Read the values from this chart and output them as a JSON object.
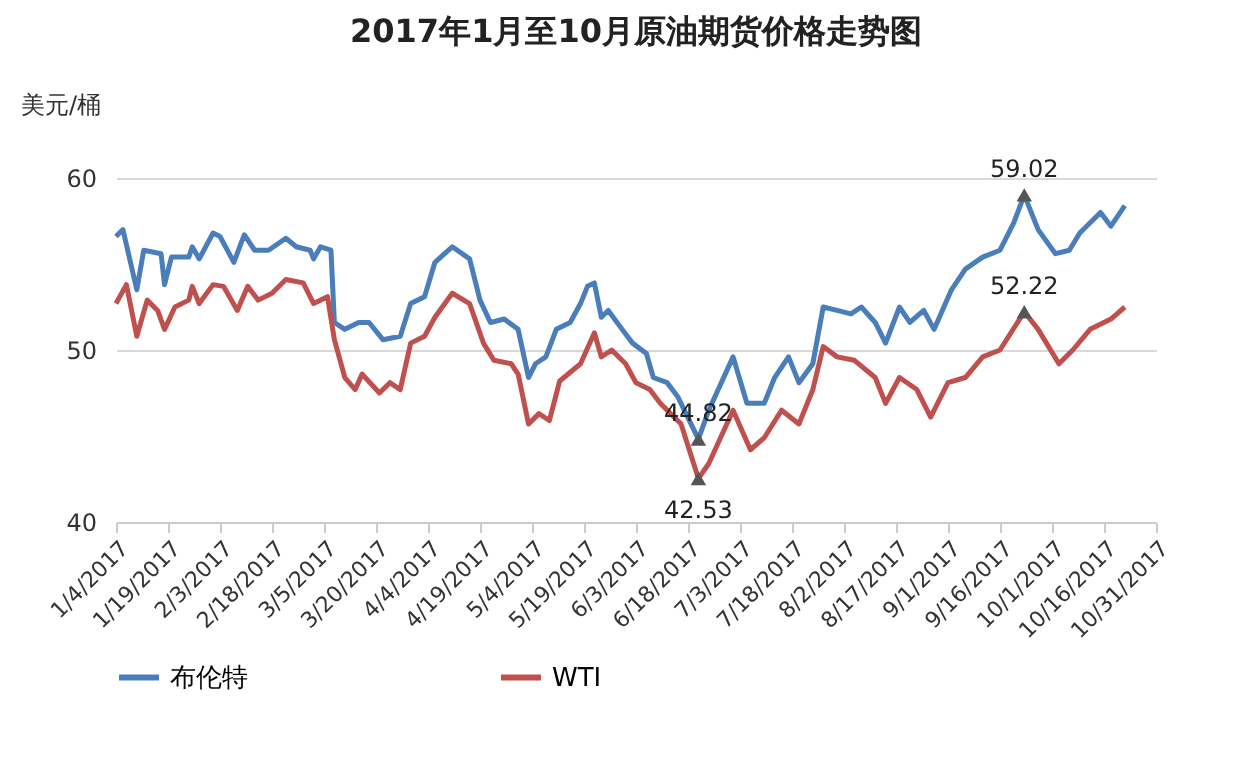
{
  "chart_data": {
    "type": "line",
    "title": "2017年1月至10月原油期货价格走势图",
    "ylabel": "美元/桶",
    "xlim": [
      "2017-01-04",
      "2017-10-31"
    ],
    "xticks": [
      {
        "value": "2017-01-04",
        "label": "1/4/2017"
      },
      {
        "value": "2017-01-19",
        "label": "1/19/2017"
      },
      {
        "value": "2017-02-03",
        "label": "2/3/2017"
      },
      {
        "value": "2017-02-18",
        "label": "2/18/2017"
      },
      {
        "value": "2017-03-05",
        "label": "3/5/2017"
      },
      {
        "value": "2017-03-20",
        "label": "3/20/2017"
      },
      {
        "value": "2017-04-04",
        "label": "4/4/2017"
      },
      {
        "value": "2017-04-19",
        "label": "4/19/2017"
      },
      {
        "value": "2017-05-04",
        "label": "5/4/2017"
      },
      {
        "value": "2017-05-19",
        "label": "5/19/2017"
      },
      {
        "value": "2017-06-03",
        "label": "6/3/2017"
      },
      {
        "value": "2017-06-18",
        "label": "6/18/2017"
      },
      {
        "value": "2017-07-03",
        "label": "7/3/2017"
      },
      {
        "value": "2017-07-18",
        "label": "7/18/2017"
      },
      {
        "value": "2017-08-02",
        "label": "8/2/2017"
      },
      {
        "value": "2017-08-17",
        "label": "8/17/2017"
      },
      {
        "value": "2017-09-01",
        "label": "9/1/2017"
      },
      {
        "value": "2017-09-16",
        "label": "9/16/2017"
      },
      {
        "value": "2017-10-01",
        "label": "10/1/2017"
      },
      {
        "value": "2017-10-16",
        "label": "10/16/2017"
      },
      {
        "value": "2017-10-31",
        "label": "10/31/2017"
      }
    ],
    "ylim": [
      40,
      60
    ],
    "yticks": [
      40,
      50,
      60
    ],
    "grid": "y",
    "legend": "bottom",
    "line_style": "solid",
    "series": [
      {
        "name": "布伦特",
        "color": "#4a7ebb",
        "x": [
          "2017-01-04",
          "2017-01-06",
          "2017-01-10",
          "2017-01-12",
          "2017-01-17",
          "2017-01-18",
          "2017-01-20",
          "2017-01-25",
          "2017-01-26",
          "2017-01-28",
          "2017-02-01",
          "2017-02-03",
          "2017-02-07",
          "2017-02-10",
          "2017-02-13",
          "2017-02-17",
          "2017-02-22",
          "2017-02-25",
          "2017-03-01",
          "2017-03-02",
          "2017-03-04",
          "2017-03-07",
          "2017-03-08",
          "2017-03-11",
          "2017-03-15",
          "2017-03-18",
          "2017-03-22",
          "2017-03-27",
          "2017-03-30",
          "2017-04-03",
          "2017-04-06",
          "2017-04-11",
          "2017-04-16",
          "2017-04-19",
          "2017-04-22",
          "2017-04-26",
          "2017-04-30",
          "2017-05-03",
          "2017-05-05",
          "2017-05-08",
          "2017-05-11",
          "2017-05-15",
          "2017-05-18",
          "2017-05-20",
          "2017-05-22",
          "2017-05-24",
          "2017-05-26",
          "2017-05-30",
          "2017-06-02",
          "2017-06-06",
          "2017-06-08",
          "2017-06-12",
          "2017-06-15",
          "2017-06-21",
          "2017-06-24",
          "2017-07-01",
          "2017-07-05",
          "2017-07-10",
          "2017-07-13",
          "2017-07-17",
          "2017-07-20",
          "2017-07-24",
          "2017-07-27",
          "2017-07-31",
          "2017-08-04",
          "2017-08-07",
          "2017-08-11",
          "2017-08-14",
          "2017-08-18",
          "2017-08-21",
          "2017-08-25",
          "2017-08-28",
          "2017-09-02",
          "2017-09-06",
          "2017-09-11",
          "2017-09-16",
          "2017-09-20",
          "2017-09-23",
          "2017-09-27",
          "2017-10-02",
          "2017-10-06",
          "2017-10-09",
          "2017-10-15",
          "2017-10-18",
          "2017-10-22"
        ],
        "values": [
          56.6,
          57.0,
          53.5,
          55.8,
          55.6,
          53.8,
          55.4,
          55.4,
          56.0,
          55.3,
          56.8,
          56.6,
          55.1,
          56.7,
          55.8,
          55.8,
          56.5,
          56.0,
          55.8,
          55.3,
          56.0,
          55.8,
          51.6,
          51.2,
          51.6,
          51.6,
          50.6,
          50.8,
          52.7,
          53.1,
          55.1,
          56.0,
          55.3,
          52.9,
          51.6,
          51.8,
          51.2,
          48.4,
          49.2,
          49.6,
          51.2,
          51.6,
          52.7,
          53.7,
          53.9,
          51.9,
          52.3,
          51.2,
          50.4,
          49.8,
          48.4,
          48.1,
          47.3,
          44.82,
          46.5,
          49.6,
          46.9,
          46.9,
          48.4,
          49.6,
          48.1,
          49.2,
          52.5,
          52.3,
          52.1,
          52.5,
          51.6,
          50.4,
          52.5,
          51.6,
          52.3,
          51.2,
          53.5,
          54.7,
          55.4,
          55.8,
          57.4,
          59.02,
          57.0,
          55.6,
          55.8,
          56.8,
          58.0,
          57.2,
          58.4
        ]
      },
      {
        "name": "WTI",
        "color": "#c0504d",
        "x": [
          "2017-01-04",
          "2017-01-07",
          "2017-01-10",
          "2017-01-13",
          "2017-01-16",
          "2017-01-18",
          "2017-01-21",
          "2017-01-25",
          "2017-01-26",
          "2017-01-28",
          "2017-02-01",
          "2017-02-04",
          "2017-02-08",
          "2017-02-11",
          "2017-02-14",
          "2017-02-18",
          "2017-02-22",
          "2017-02-27",
          "2017-03-02",
          "2017-03-06",
          "2017-03-08",
          "2017-03-11",
          "2017-03-14",
          "2017-03-16",
          "2017-03-21",
          "2017-03-24",
          "2017-03-27",
          "2017-03-30",
          "2017-04-03",
          "2017-04-06",
          "2017-04-11",
          "2017-04-16",
          "2017-04-20",
          "2017-04-23",
          "2017-04-28",
          "2017-04-30",
          "2017-05-03",
          "2017-05-06",
          "2017-05-09",
          "2017-05-12",
          "2017-05-18",
          "2017-05-22",
          "2017-05-24",
          "2017-05-27",
          "2017-05-31",
          "2017-06-03",
          "2017-06-07",
          "2017-06-10",
          "2017-06-16",
          "2017-06-21",
          "2017-06-24",
          "2017-07-01",
          "2017-07-06",
          "2017-07-10",
          "2017-07-15",
          "2017-07-20",
          "2017-07-24",
          "2017-07-27",
          "2017-07-31",
          "2017-08-05",
          "2017-08-11",
          "2017-08-14",
          "2017-08-18",
          "2017-08-23",
          "2017-08-27",
          "2017-09-01",
          "2017-09-06",
          "2017-09-11",
          "2017-09-16",
          "2017-09-23",
          "2017-09-27",
          "2017-10-03",
          "2017-10-07",
          "2017-10-12",
          "2017-10-18",
          "2017-10-22"
        ],
        "values": [
          52.7,
          53.8,
          50.8,
          52.9,
          52.3,
          51.2,
          52.5,
          52.9,
          53.7,
          52.7,
          53.8,
          53.7,
          52.3,
          53.7,
          52.9,
          53.3,
          54.1,
          53.9,
          52.7,
          53.1,
          50.6,
          48.4,
          47.7,
          48.6,
          47.5,
          48.1,
          47.7,
          50.4,
          50.8,
          51.9,
          53.3,
          52.7,
          50.4,
          49.4,
          49.2,
          48.6,
          45.7,
          46.3,
          45.9,
          48.2,
          49.2,
          51.0,
          49.6,
          50.0,
          49.2,
          48.1,
          47.7,
          46.9,
          45.7,
          42.53,
          43.4,
          46.5,
          44.2,
          44.9,
          46.5,
          45.7,
          47.7,
          50.2,
          49.6,
          49.4,
          48.4,
          46.9,
          48.4,
          47.7,
          46.1,
          48.1,
          48.4,
          49.6,
          50.0,
          52.22,
          51.2,
          49.2,
          50.0,
          51.2,
          51.8,
          52.5
        ]
      }
    ],
    "annotations": [
      {
        "text": "59.02",
        "x": "2017-09-23",
        "y": 59.02
      },
      {
        "text": "52.22",
        "x": "2017-09-23",
        "y": 52.22
      },
      {
        "text": "44.82",
        "x": "2017-06-21",
        "y": 44.82
      },
      {
        "text": "42.53",
        "x": "2017-06-21",
        "y": 42.53
      }
    ]
  }
}
